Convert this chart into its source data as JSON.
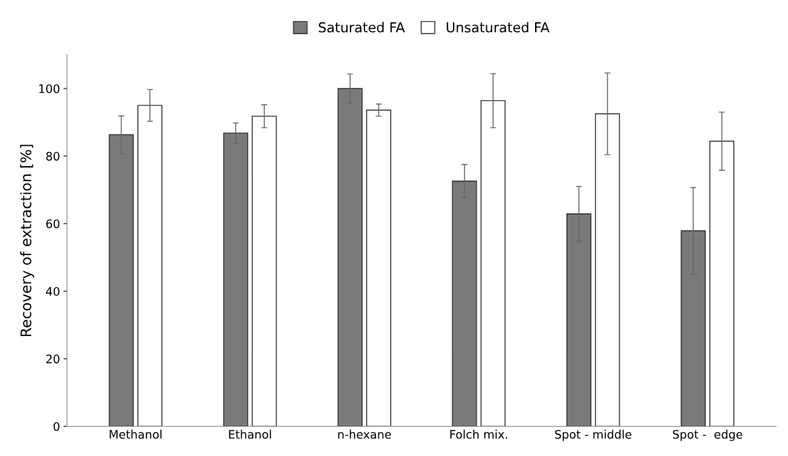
{
  "chart_data": {
    "type": "bar",
    "ylabel": "Recovery of extraction [%]",
    "categories": [
      "Methanol",
      "Ethanol",
      "n-hexane",
      "Folch mix.",
      "Spot - middle",
      "Spot -  edge"
    ],
    "series": [
      {
        "name": "Saturated FA",
        "color": "#7a7a7a",
        "values": [
          86.3,
          86.8,
          100,
          72.6,
          62.9,
          57.9
        ],
        "errors": [
          5.6,
          3,
          4.3,
          4.9,
          8.1,
          12.8
        ]
      },
      {
        "name": "Unsaturated FA",
        "color": "#ffffff",
        "values": [
          95,
          91.8,
          93.6,
          96.4,
          92.5,
          84.4
        ],
        "errors": [
          4.7,
          3.4,
          1.8,
          8,
          12.1,
          8.6
        ]
      }
    ],
    "ylim": [
      0,
      110
    ],
    "yticks": [
      0,
      20,
      40,
      60,
      80,
      100
    ],
    "grid": false,
    "legend": "top"
  }
}
